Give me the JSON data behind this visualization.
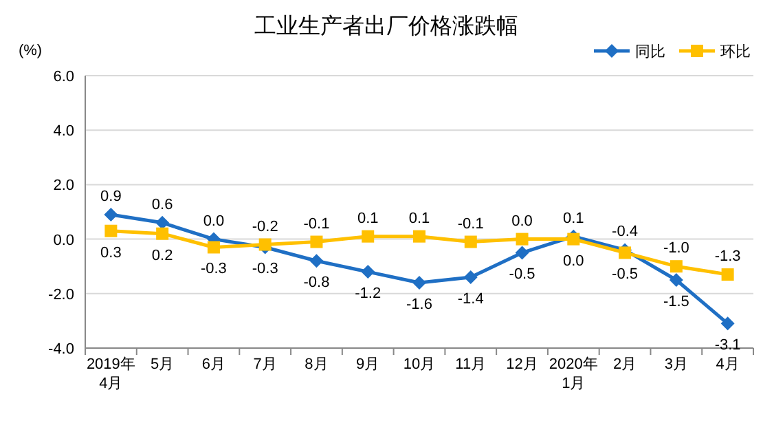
{
  "chart_data": {
    "type": "line",
    "title": "工业生产者出厂价格涨跌幅",
    "ylabel": "(%)",
    "categories": [
      "2019年\n4月",
      "5月",
      "6月",
      "7月",
      "8月",
      "9月",
      "10月",
      "11月",
      "12月",
      "2020年\n1月",
      "2月",
      "3月",
      "4月"
    ],
    "series": [
      {
        "name": "同比",
        "color": "#1f6fc4",
        "marker": "diamond",
        "values": [
          0.9,
          0.6,
          0.0,
          -0.3,
          -0.8,
          -1.2,
          -1.6,
          -1.4,
          -0.5,
          0.1,
          -0.4,
          -1.5,
          -3.1
        ],
        "value_labels": [
          "0.9",
          "0.6",
          "0.0",
          "-0.3",
          "-0.8",
          "-1.2",
          "-1.6",
          "-1.4",
          "-0.5",
          "0.1",
          "-0.4",
          "-1.5",
          "-3.1"
        ]
      },
      {
        "name": "环比",
        "color": "#ffc000",
        "marker": "square",
        "values": [
          0.3,
          0.2,
          -0.3,
          -0.2,
          -0.1,
          0.1,
          0.1,
          -0.1,
          0.0,
          0.0,
          -0.5,
          -1.0,
          -1.3
        ],
        "value_labels": [
          "0.3",
          "0.2",
          "-0.3",
          "-0.2",
          "-0.1",
          "0.1",
          "0.1",
          "-0.1",
          "0.0",
          "0.0",
          "-0.5",
          "-1.0",
          "-1.3"
        ]
      }
    ],
    "ylim": [
      -4,
      6
    ],
    "yticks": [
      {
        "value": -4,
        "label": "-4.0"
      },
      {
        "value": -2,
        "label": "-2.0"
      },
      {
        "value": 0,
        "label": "0.0"
      },
      {
        "value": 2,
        "label": "2.0"
      },
      {
        "value": 4,
        "label": "4.0"
      },
      {
        "value": 6,
        "label": "6.0"
      }
    ],
    "grid": "y",
    "legend": "top right",
    "line_style": "solid"
  }
}
